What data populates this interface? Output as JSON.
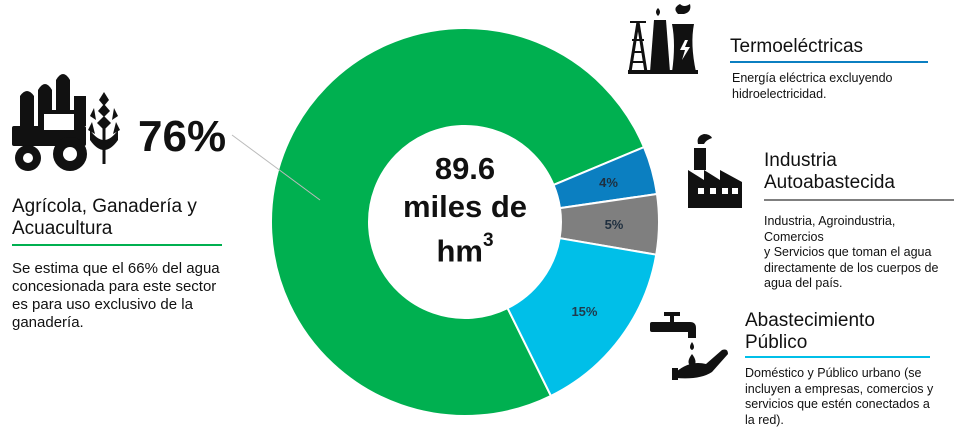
{
  "chart_data": {
    "type": "pie",
    "donut": true,
    "center_value": "89.6",
    "center_unit_line1": "miles de",
    "center_unit_base": "hm",
    "center_unit_sup": "3",
    "slices": [
      {
        "label": "Agrícola, Ganadería y Acuacultura",
        "value": 76,
        "display": "",
        "color": "#00b050"
      },
      {
        "label": "Termoeléctricas",
        "value": 4,
        "display": "4%",
        "color": "#0b7fc1"
      },
      {
        "label": "Industria Autoabastecida",
        "value": 5,
        "display": "5%",
        "color": "#7f7f7f"
      },
      {
        "label": "Abastecimiento Público",
        "value": 15,
        "display": "15%",
        "color": "#00bfe8"
      }
    ]
  },
  "agricola": {
    "percent": "76%",
    "title_line1": "Agrícola, Ganadería y",
    "title_line2": "Acuacultura",
    "desc_line1": "Se estima que el 66% del agua",
    "desc_line2": "concesionada para este sector",
    "desc_line3": "es para uso exclusivo de la",
    "desc_line4": "ganadería.",
    "rule_color": "#00b050"
  },
  "termo": {
    "title": "Termoeléctricas",
    "desc_line1": "Energía eléctrica excluyendo",
    "desc_line2": "hidroelectricidad.",
    "rule_color": "#0b7fc1"
  },
  "industria": {
    "title_line1": "Industria",
    "title_line2": "Autoabastecida",
    "desc_line1": "Industria, Agroindustria, Comercios",
    "desc_line2": "y Servicios que toman el agua",
    "desc_line3": "directamente de los cuerpos de",
    "desc_line4": "agua del país.",
    "rule_color": "#7f7f7f"
  },
  "publico": {
    "title_line1": "Abastecimiento",
    "title_line2": "Público",
    "desc_line1": "Doméstico y Público urbano (se",
    "desc_line2": "incluyen a empresas, comercios y",
    "desc_line3": "servicios que estén conectados a",
    "desc_line4": "la red).",
    "rule_color": "#00bfe8"
  },
  "icons": {
    "agricola": "tractor-silo-wheat-icon",
    "termo": "power-plant-icon",
    "industria": "factory-icon",
    "publico": "faucet-hand-icon"
  }
}
